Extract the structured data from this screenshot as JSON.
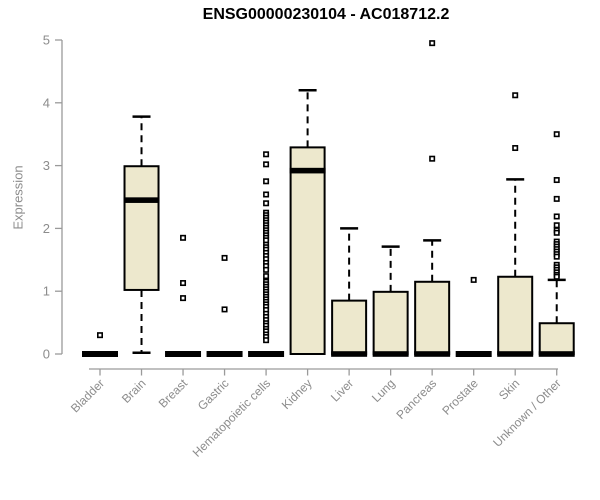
{
  "chart_data": {
    "type": "boxplot",
    "title": "ENSG00000230104 - AC018712.2",
    "ylabel": "Expression",
    "xlabel": "",
    "ylim": [
      0,
      5
    ],
    "yticks": [
      0,
      1,
      2,
      3,
      4,
      5
    ],
    "grid": false,
    "legend": "none",
    "categories": [
      "Bladder",
      "Brain",
      "Breast",
      "Gastric",
      "Hematopoietic cells",
      "Kidney",
      "Liver",
      "Lung",
      "Pancreas",
      "Prostate",
      "Skin",
      "Unknown / Other"
    ],
    "boxes": [
      {
        "category": "Bladder",
        "whisker_low": 0,
        "q1": 0,
        "median": 0,
        "q3": 0,
        "whisker_high": 0,
        "outliers": [
          0.3
        ]
      },
      {
        "category": "Brain",
        "whisker_low": 0.02,
        "q1": 1.02,
        "median": 2.45,
        "q3": 2.99,
        "whisker_high": 3.78,
        "outliers": []
      },
      {
        "category": "Breast",
        "whisker_low": 0,
        "q1": 0,
        "median": 0,
        "q3": 0,
        "whisker_high": 0,
        "outliers": [
          1.85,
          1.13,
          0.89
        ]
      },
      {
        "category": "Gastric",
        "whisker_low": 0,
        "q1": 0,
        "median": 0,
        "q3": 0,
        "whisker_high": 0,
        "outliers": [
          1.53,
          0.71
        ]
      },
      {
        "category": "Hematopoietic cells",
        "whisker_low": 0,
        "q1": 0,
        "median": 0,
        "q3": 0,
        "whisker_high": 0,
        "outliers": [
          3.18,
          3.02,
          2.75,
          2.54,
          2.4,
          2.25,
          2.21,
          2.17,
          2.13,
          2.09,
          2.05,
          2.01,
          1.97,
          1.93,
          1.89,
          1.85,
          1.81,
          1.74,
          1.7,
          1.66,
          1.61,
          1.56,
          1.51,
          1.45,
          1.4,
          1.34,
          1.24,
          1.15,
          1.11,
          1.07,
          1.03,
          0.99,
          0.95,
          0.91,
          0.87,
          0.83,
          0.79,
          0.75,
          0.7,
          0.64,
          0.59,
          0.54,
          0.49,
          0.45,
          0.4,
          0.36,
          0.31,
          0.27,
          0.22
        ]
      },
      {
        "category": "Kidney",
        "whisker_low": 0,
        "q1": 0,
        "median": 2.92,
        "q3": 3.29,
        "whisker_high": 4.2,
        "outliers": []
      },
      {
        "category": "Liver",
        "whisker_low": 0,
        "q1": 0,
        "median": 0,
        "q3": 0.85,
        "whisker_high": 2.0,
        "outliers": []
      },
      {
        "category": "Lung",
        "whisker_low": 0,
        "q1": 0,
        "median": 0,
        "q3": 0.99,
        "whisker_high": 1.71,
        "outliers": []
      },
      {
        "category": "Pancreas",
        "whisker_low": 0,
        "q1": 0,
        "median": 0,
        "q3": 1.15,
        "whisker_high": 1.81,
        "outliers": [
          4.95,
          3.11
        ]
      },
      {
        "category": "Prostate",
        "whisker_low": 0,
        "q1": 0,
        "median": 0,
        "q3": 0,
        "whisker_high": 0,
        "outliers": [
          1.18
        ]
      },
      {
        "category": "Skin",
        "whisker_low": 0,
        "q1": 0,
        "median": 0,
        "q3": 1.23,
        "whisker_high": 2.78,
        "outliers": [
          4.12,
          3.28
        ]
      },
      {
        "category": "Unknown / Other",
        "whisker_low": 0,
        "q1": 0,
        "median": 0,
        "q3": 0.49,
        "whisker_high": 1.18,
        "outliers": [
          3.5,
          2.77,
          2.47,
          2.19,
          2.05,
          1.97,
          1.93,
          1.79,
          1.75,
          1.71,
          1.67,
          1.63,
          1.59,
          1.55,
          1.42,
          1.38,
          1.34,
          1.3,
          1.26,
          1.23
        ]
      }
    ],
    "colors": {
      "box_fill": "#ede8cd",
      "box_stroke": "#000000",
      "median": "#000000",
      "whisker": "#000000",
      "outlier_stroke": "#000000",
      "outlier_fill": "#ffffff",
      "axis": "#9a9a9a",
      "tick_label": "#8c8c8c",
      "title": "#000000"
    }
  }
}
